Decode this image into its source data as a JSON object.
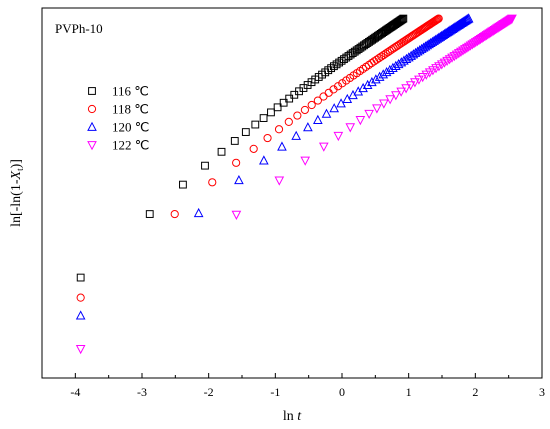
{
  "chart_data": {
    "type": "scatter",
    "title": "",
    "annotation": "PVPh-10",
    "xlabel": "ln t",
    "ylabel": "ln[-ln(1-Xt)]",
    "xlim": [
      -4.5,
      3
    ],
    "ylim": [
      -5.6,
      1.4
    ],
    "xticks": [
      "-4",
      "-3",
      "-2",
      "-1",
      "0",
      "1",
      "2",
      "3"
    ],
    "yticks_shown": false,
    "grid": false,
    "legend_position": "upper-left",
    "series": [
      {
        "name": "116 ℃",
        "marker": "square",
        "color": "#000000",
        "x0": -3.92,
        "x1": 0.92,
        "y0": -3.7,
        "y1": 1.2
      },
      {
        "name": "118 ℃",
        "marker": "circle",
        "color": "#ff0000",
        "x0": -3.92,
        "x1": 1.45,
        "y0": -4.08,
        "y1": 1.2
      },
      {
        "name": "120 ℃",
        "marker": "triangle-up",
        "color": "#0000ff",
        "x0": -3.92,
        "x1": 1.9,
        "y0": -4.42,
        "y1": 1.2
      },
      {
        "name": "122 ℃",
        "marker": "triangle-down",
        "color": "#ff00ff",
        "x0": -3.92,
        "x1": 2.55,
        "y0": -5.05,
        "y1": 1.2
      }
    ]
  }
}
